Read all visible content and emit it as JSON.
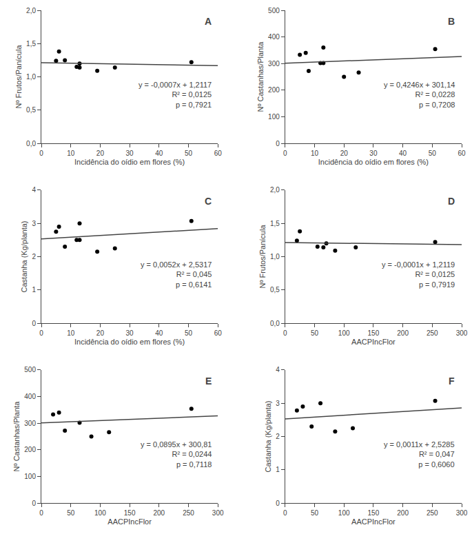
{
  "chart_data": [
    {
      "type": "scatter",
      "xlabel": "Incidência do oídio em flores (%)",
      "ylabel": "Nº Frutos/Panícula",
      "series": [
        {
          "type": "scatter",
          "color": "#000000",
          "x": [
            5,
            6,
            8,
            12,
            13,
            13,
            19,
            25,
            51
          ],
          "values": [
            1.24,
            1.38,
            1.25,
            1.15,
            1.14,
            1.2,
            1.09,
            1.14,
            1.22
          ]
        },
        {
          "type": "line",
          "color": "#444444",
          "x": [
            0,
            60
          ],
          "values": [
            1.2117,
            1.1697
          ]
        }
      ],
      "annotations": [
        "A",
        "y = -0,0007x + 1,2117",
        "R² = 0,0125",
        "p = 0,7921"
      ],
      "xlim": [
        0,
        60
      ],
      "ylim": [
        0.0,
        2.0
      ],
      "xticks": [
        0,
        10,
        20,
        30,
        40,
        50,
        60
      ],
      "yticks": [
        {
          "value": 0.0,
          "label": "0,0"
        },
        {
          "value": 0.5,
          "label": "0,5"
        },
        {
          "value": 1.0,
          "label": "1,0"
        },
        {
          "value": 1.5,
          "label": "1,5"
        },
        {
          "value": 2.0,
          "label": "2,0"
        }
      ],
      "grid": false
    },
    {
      "type": "scatter",
      "xlabel": "Incidência do oídio em flores (%)",
      "ylabel": "Nº Castanhas/Planta",
      "series": [
        {
          "type": "scatter",
          "color": "#000000",
          "x": [
            5,
            7,
            8,
            12,
            13,
            13,
            20,
            25,
            51
          ],
          "values": [
            333,
            340,
            272,
            302,
            360,
            302,
            250,
            266,
            354
          ]
        },
        {
          "type": "line",
          "color": "#444444",
          "x": [
            0,
            60
          ],
          "values": [
            301.14,
            326.616
          ]
        }
      ],
      "annotations": [
        "B",
        "y = 0,4246x + 301,14",
        "R² = 0,0228",
        "p = 0,7208"
      ],
      "xlim": [
        0,
        60
      ],
      "ylim": [
        0,
        500
      ],
      "xticks": [
        0,
        10,
        20,
        30,
        40,
        50,
        60
      ],
      "yticks": [
        0,
        100,
        200,
        300,
        400,
        500
      ],
      "grid": false
    },
    {
      "type": "scatter",
      "xlabel": "Incidência do oídio em flores (%)",
      "ylabel": "Castanha (Kg/planta)",
      "series": [
        {
          "type": "scatter",
          "color": "#000000",
          "x": [
            5,
            6,
            8,
            12,
            13,
            13,
            19,
            25,
            51
          ],
          "values": [
            2.75,
            2.9,
            2.3,
            2.5,
            3.0,
            2.5,
            2.15,
            2.25,
            3.07
          ]
        },
        {
          "type": "line",
          "color": "#444444",
          "x": [
            0,
            60
          ],
          "values": [
            2.5317,
            2.8437
          ]
        }
      ],
      "annotations": [
        "C",
        "y = 0,0052x + 2,5317",
        "R² = 0,045",
        "p = 0,6141"
      ],
      "xlim": [
        0,
        60
      ],
      "ylim": [
        0,
        4
      ],
      "xticks": [
        0,
        10,
        20,
        30,
        40,
        50,
        60
      ],
      "yticks": [
        0,
        1,
        2,
        3,
        4
      ],
      "grid": false
    },
    {
      "type": "scatter",
      "xlabel": "AACPIncFlor",
      "ylabel": "Nº Frutos/Panícula",
      "series": [
        {
          "type": "scatter",
          "color": "#000000",
          "x": [
            20,
            25,
            55,
            65,
            70,
            85,
            120,
            255
          ],
          "values": [
            1.24,
            1.38,
            1.15,
            1.14,
            1.2,
            1.09,
            1.14,
            1.22
          ]
        },
        {
          "type": "line",
          "color": "#444444",
          "x": [
            0,
            300
          ],
          "values": [
            1.2119,
            1.1819
          ]
        }
      ],
      "annotations": [
        "D",
        "y = -0,0001x + 1,2119",
        "R² = 0,0125",
        "p = 0,7919"
      ],
      "xlim": [
        0,
        300
      ],
      "ylim": [
        0.0,
        2.0
      ],
      "xticks": [
        0,
        50,
        100,
        150,
        200,
        250,
        300
      ],
      "yticks": [
        {
          "value": 0.0,
          "label": "0,0"
        },
        {
          "value": 0.5,
          "label": "0,5"
        },
        {
          "value": 1.0,
          "label": "1,0"
        },
        {
          "value": 1.5,
          "label": "1,5"
        },
        {
          "value": 2.0,
          "label": "2,0"
        }
      ],
      "grid": false
    },
    {
      "type": "scatter",
      "xlabel": "AACPIncFlor",
      "ylabel": "Nº Castanhas/Planta",
      "series": [
        {
          "type": "scatter",
          "color": "#000000",
          "x": [
            20,
            30,
            40,
            65,
            85,
            115,
            255
          ],
          "values": [
            333,
            340,
            272,
            302,
            250,
            266,
            354
          ]
        },
        {
          "type": "line",
          "color": "#444444",
          "x": [
            0,
            300
          ],
          "values": [
            300.81,
            327.66
          ]
        }
      ],
      "annotations": [
        "E",
        "y = 0,0895x + 300,81",
        "R² = 0,0244",
        "p = 0,7118"
      ],
      "xlim": [
        0,
        300
      ],
      "ylim": [
        0,
        500
      ],
      "xticks": [
        0,
        50,
        100,
        150,
        200,
        250,
        300
      ],
      "yticks": [
        0,
        100,
        200,
        300,
        400,
        500
      ],
      "grid": false
    },
    {
      "type": "scatter",
      "xlabel": "AACPIncFlor",
      "ylabel": "Castanha (Kg/planta)",
      "series": [
        {
          "type": "scatter",
          "color": "#000000",
          "x": [
            20,
            30,
            45,
            60,
            85,
            115,
            255
          ],
          "values": [
            2.78,
            2.9,
            2.3,
            3.0,
            2.15,
            2.25,
            3.07
          ]
        },
        {
          "type": "line",
          "color": "#444444",
          "x": [
            0,
            300
          ],
          "values": [
            2.5285,
            2.8585
          ]
        }
      ],
      "annotations": [
        "F",
        "y = 0,0011x + 2,5285",
        "R² = 0,047",
        "p = 0,6060"
      ],
      "xlim": [
        0,
        300
      ],
      "ylim": [
        0,
        4
      ],
      "xticks": [
        0,
        50,
        100,
        150,
        200,
        250,
        300
      ],
      "yticks": [
        0,
        1,
        2,
        3,
        4
      ],
      "grid": false
    }
  ]
}
